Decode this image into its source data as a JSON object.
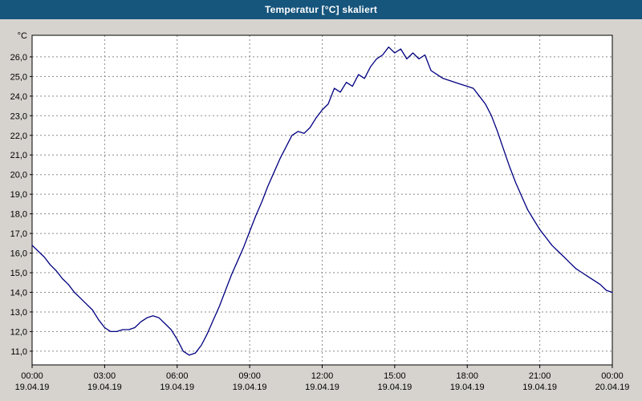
{
  "window": {
    "title": "Temperatur [°C] skaliert",
    "titlebar_color": "#16557c"
  },
  "chart_data": {
    "type": "line",
    "title": "Temperatur [°C] skaliert",
    "ylabel": "°C",
    "unit_label": "°C",
    "legend": "none",
    "grid": "dashed both axes",
    "line_color": "#000080",
    "grid_color": "#8a8a8a",
    "plot_bg": "#ffffff",
    "ylim": [
      10.3,
      27.1
    ],
    "xlim": [
      0,
      24
    ],
    "y_ticks": [
      {
        "v": 11,
        "label": "11,0"
      },
      {
        "v": 12,
        "label": "12,0"
      },
      {
        "v": 13,
        "label": "13,0"
      },
      {
        "v": 14,
        "label": "14,0"
      },
      {
        "v": 15,
        "label": "15,0"
      },
      {
        "v": 16,
        "label": "16,0"
      },
      {
        "v": 17,
        "label": "17,0"
      },
      {
        "v": 18,
        "label": "18,0"
      },
      {
        "v": 19,
        "label": "19,0"
      },
      {
        "v": 20,
        "label": "20,0"
      },
      {
        "v": 21,
        "label": "21,0"
      },
      {
        "v": 22,
        "label": "22,0"
      },
      {
        "v": 23,
        "label": "23,0"
      },
      {
        "v": 24,
        "label": "24,0"
      },
      {
        "v": 25,
        "label": "25,0"
      },
      {
        "v": 26,
        "label": "26,0"
      }
    ],
    "x_ticks": [
      {
        "h": 0,
        "time": "00:00",
        "date": "19.04.19"
      },
      {
        "h": 3,
        "time": "03:00",
        "date": "19.04.19"
      },
      {
        "h": 6,
        "time": "06:00",
        "date": "19.04.19"
      },
      {
        "h": 9,
        "time": "09:00",
        "date": "19.04.19"
      },
      {
        "h": 12,
        "time": "12:00",
        "date": "19.04.19"
      },
      {
        "h": 15,
        "time": "15:00",
        "date": "19.04.19"
      },
      {
        "h": 18,
        "time": "18:00",
        "date": "19.04.19"
      },
      {
        "h": 21,
        "time": "21:00",
        "date": "19.04.19"
      },
      {
        "h": 24,
        "time": "00:00",
        "date": "20.04.19"
      }
    ],
    "series": [
      {
        "name": "Temperatur",
        "points": [
          [
            0.0,
            16.4
          ],
          [
            0.25,
            16.1
          ],
          [
            0.5,
            15.8
          ],
          [
            0.75,
            15.4
          ],
          [
            1.0,
            15.1
          ],
          [
            1.25,
            14.7
          ],
          [
            1.5,
            14.4
          ],
          [
            1.75,
            14.0
          ],
          [
            2.0,
            13.7
          ],
          [
            2.25,
            13.4
          ],
          [
            2.5,
            13.1
          ],
          [
            2.75,
            12.6
          ],
          [
            3.0,
            12.2
          ],
          [
            3.25,
            12.0
          ],
          [
            3.5,
            12.0
          ],
          [
            3.75,
            12.1
          ],
          [
            4.0,
            12.1
          ],
          [
            4.25,
            12.2
          ],
          [
            4.5,
            12.5
          ],
          [
            4.75,
            12.7
          ],
          [
            5.0,
            12.8
          ],
          [
            5.25,
            12.7
          ],
          [
            5.5,
            12.4
          ],
          [
            5.75,
            12.1
          ],
          [
            6.0,
            11.6
          ],
          [
            6.25,
            11.0
          ],
          [
            6.5,
            10.8
          ],
          [
            6.75,
            10.9
          ],
          [
            7.0,
            11.3
          ],
          [
            7.25,
            11.9
          ],
          [
            7.5,
            12.6
          ],
          [
            7.75,
            13.3
          ],
          [
            8.0,
            14.1
          ],
          [
            8.25,
            14.9
          ],
          [
            8.5,
            15.6
          ],
          [
            8.75,
            16.3
          ],
          [
            9.0,
            17.1
          ],
          [
            9.25,
            17.9
          ],
          [
            9.5,
            18.6
          ],
          [
            9.75,
            19.4
          ],
          [
            10.0,
            20.1
          ],
          [
            10.25,
            20.8
          ],
          [
            10.5,
            21.4
          ],
          [
            10.75,
            22.0
          ],
          [
            11.0,
            22.2
          ],
          [
            11.25,
            22.1
          ],
          [
            11.5,
            22.4
          ],
          [
            11.75,
            22.9
          ],
          [
            12.0,
            23.3
          ],
          [
            12.25,
            23.6
          ],
          [
            12.5,
            24.4
          ],
          [
            12.75,
            24.2
          ],
          [
            13.0,
            24.7
          ],
          [
            13.25,
            24.5
          ],
          [
            13.5,
            25.1
          ],
          [
            13.75,
            24.9
          ],
          [
            14.0,
            25.5
          ],
          [
            14.25,
            25.9
          ],
          [
            14.5,
            26.1
          ],
          [
            14.75,
            26.5
          ],
          [
            15.0,
            26.2
          ],
          [
            15.25,
            26.4
          ],
          [
            15.5,
            25.9
          ],
          [
            15.75,
            26.2
          ],
          [
            16.0,
            25.9
          ],
          [
            16.25,
            26.1
          ],
          [
            16.5,
            25.3
          ],
          [
            16.75,
            25.1
          ],
          [
            17.0,
            24.9
          ],
          [
            17.25,
            24.8
          ],
          [
            17.5,
            24.7
          ],
          [
            17.75,
            24.6
          ],
          [
            18.0,
            24.5
          ],
          [
            18.25,
            24.4
          ],
          [
            18.5,
            24.0
          ],
          [
            18.75,
            23.6
          ],
          [
            19.0,
            23.0
          ],
          [
            19.25,
            22.2
          ],
          [
            19.5,
            21.3
          ],
          [
            19.75,
            20.4
          ],
          [
            20.0,
            19.6
          ],
          [
            20.25,
            18.9
          ],
          [
            20.5,
            18.2
          ],
          [
            20.75,
            17.7
          ],
          [
            21.0,
            17.2
          ],
          [
            21.25,
            16.8
          ],
          [
            21.5,
            16.4
          ],
          [
            21.75,
            16.1
          ],
          [
            22.0,
            15.8
          ],
          [
            22.25,
            15.5
          ],
          [
            22.5,
            15.2
          ],
          [
            22.75,
            15.0
          ],
          [
            23.0,
            14.8
          ],
          [
            23.25,
            14.6
          ],
          [
            23.5,
            14.4
          ],
          [
            23.75,
            14.1
          ],
          [
            24.0,
            14.0
          ]
        ]
      }
    ]
  }
}
